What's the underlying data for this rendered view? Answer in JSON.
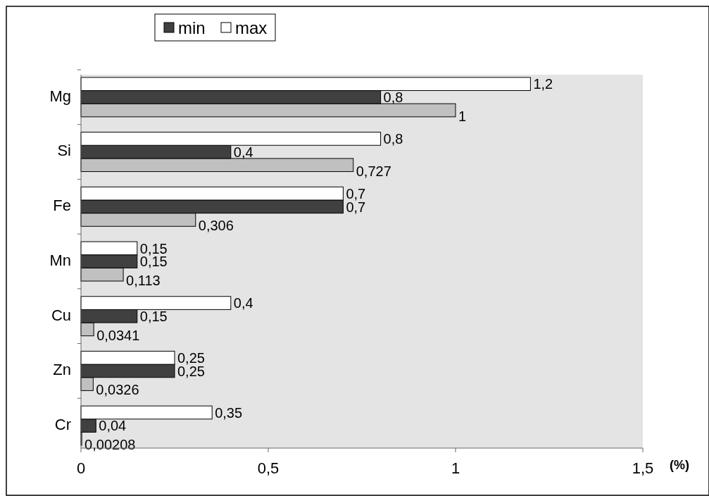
{
  "chart_data": {
    "type": "bar",
    "orientation": "horizontal",
    "xlabel": "(%)",
    "categories": [
      "Mg",
      "Si",
      "Fe",
      "Mn",
      "Cu",
      "Zn",
      "Cr"
    ],
    "series": [
      {
        "color": "#c0c0c0",
        "values": [
          1,
          0.727,
          0.306,
          0.113,
          0.0341,
          0.0326,
          0.00208
        ],
        "value_labels": [
          "1",
          "0,727",
          "0,306",
          "0,113",
          "0,0341",
          "0,0326",
          "0,00208"
        ]
      },
      {
        "name": "min",
        "color": "#404040",
        "values": [
          0.8,
          0.4,
          0.7,
          0.15,
          0.15,
          0.25,
          0.04
        ],
        "value_labels": [
          "0,8",
          "0,4",
          "0,7",
          "0,15",
          "0,15",
          "0,25",
          "0,04"
        ]
      },
      {
        "name": "max",
        "color": "#ffffff",
        "values": [
          1.2,
          0.8,
          0.7,
          0.15,
          0.4,
          0.25,
          0.35
        ],
        "value_labels": [
          "1,2",
          "0,8",
          "0,7",
          "0,15",
          "0,4",
          "0,25",
          "0,35"
        ]
      }
    ],
    "xlim": [
      0,
      1.5
    ],
    "xticks": [
      {
        "value": 0,
        "label": "0"
      },
      {
        "value": 0.5,
        "label": "0,5"
      },
      {
        "value": 1,
        "label": "1"
      },
      {
        "value": 1.5,
        "label": "1,5"
      }
    ],
    "legend": "top",
    "grid": false
  }
}
